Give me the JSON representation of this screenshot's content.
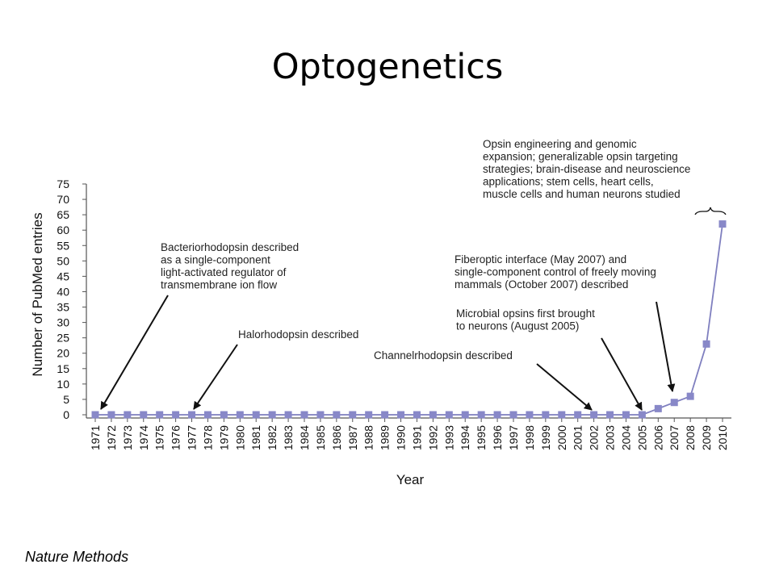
{
  "slide": {
    "title": "Optogenetics",
    "source": "Nature Methods"
  },
  "chart_data": {
    "type": "line",
    "xlabel": "Year",
    "ylabel": "Number of PubMed entries",
    "ylim": [
      0,
      75
    ],
    "yticks": [
      0,
      5,
      10,
      15,
      20,
      25,
      30,
      35,
      40,
      45,
      50,
      55,
      60,
      65,
      70,
      75
    ],
    "xlim": [
      1971,
      2010
    ],
    "grid": false,
    "series_color": "#7f7fbf",
    "marker_color": "#8888c8",
    "series": [
      {
        "x": [
          1971,
          1972,
          1973,
          1974,
          1975,
          1976,
          1977,
          1978,
          1979,
          1980,
          1981,
          1982,
          1983,
          1984,
          1985,
          1986,
          1987,
          1988,
          1989,
          1990,
          1991,
          1992,
          1993,
          1994,
          1995,
          1996,
          1997,
          1998,
          1999,
          2000,
          2001,
          2002,
          2003,
          2004,
          2005,
          2006,
          2007,
          2008,
          2009,
          2010
        ],
        "values": [
          0,
          0,
          0,
          0,
          0,
          0,
          0,
          0,
          0,
          0,
          0,
          0,
          0,
          0,
          0,
          0,
          0,
          0,
          0,
          0,
          0,
          0,
          0,
          0,
          0,
          0,
          0,
          0,
          0,
          0,
          0,
          0,
          0,
          0,
          0,
          2,
          4,
          6,
          23,
          62
        ]
      }
    ],
    "annotations": [
      {
        "lines": [
          "Bacteriorhodopsin described",
          "as a single-component",
          "light-activated regulator of",
          "transmembrane ion flow"
        ],
        "target_year": 1971
      },
      {
        "lines": [
          "Halorhodopsin described"
        ],
        "target_year": 1977
      },
      {
        "lines": [
          "Channelrhodopsin described"
        ],
        "target_year": 2002
      },
      {
        "lines": [
          "Microbial opsins first brought",
          "to neurons (August 2005)"
        ],
        "target_year": 2005
      },
      {
        "lines": [
          "Fiberoptic interface (May 2007) and",
          "single-component control of freely moving",
          "mammals (October 2007) described"
        ],
        "target_year": 2007
      },
      {
        "lines": [
          "Opsin engineering and genomic",
          "expansion; generalizable opsin targeting",
          "strategies; brain-disease and neuroscience",
          "applications; stem cells, heart cells,",
          "muscle cells and human neurons studied"
        ],
        "target_year": [
          2008,
          2010
        ]
      }
    ]
  }
}
